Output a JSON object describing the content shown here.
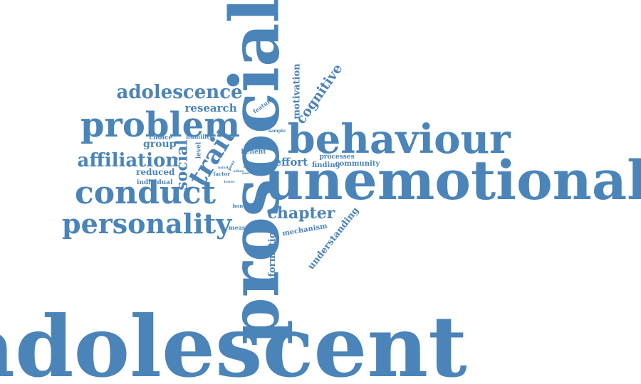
{
  "color": "#4a84b9",
  "words": [
    "adolescent",
    "prosocial",
    "unemotional",
    "behaviour",
    "problem",
    "conduct",
    "personality",
    "adolescence",
    "affiliation",
    "trait",
    "chapter",
    "social",
    "cognitive",
    "research",
    "motivation",
    "information",
    "understanding",
    "effort",
    "group",
    "reduced",
    "individual",
    "mechanism",
    "finding",
    "community",
    "processes",
    "benefit",
    "choice",
    "humility",
    "level",
    "feature",
    "measure",
    "honesty",
    "factor",
    "sample",
    "peer",
    "mind",
    "other",
    "act",
    "lower",
    "more"
  ]
}
